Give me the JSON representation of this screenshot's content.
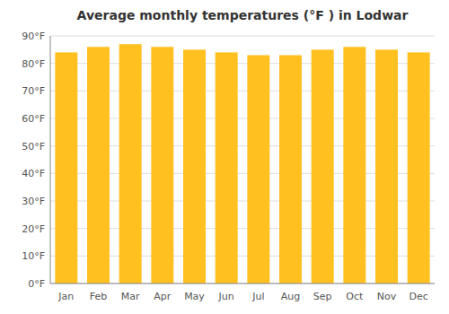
{
  "chart_data": {
    "type": "bar",
    "title": "Average monthly temperatures (°F ) in Lodwar",
    "categories": [
      "Jan",
      "Feb",
      "Mar",
      "Apr",
      "May",
      "Jun",
      "Jul",
      "Aug",
      "Sep",
      "Oct",
      "Nov",
      "Dec"
    ],
    "values": [
      84,
      86,
      87,
      86,
      85,
      84,
      83,
      83,
      85,
      86,
      85,
      84
    ],
    "color": "#FFC020",
    "ylim": [
      0,
      90
    ],
    "yticks": [
      {
        "value": 0,
        "label": "0°F"
      },
      {
        "value": 10,
        "label": "10°F"
      },
      {
        "value": 20,
        "label": "20°F"
      },
      {
        "value": 30,
        "label": "30°F"
      },
      {
        "value": 40,
        "label": "40°F"
      },
      {
        "value": 50,
        "label": "50°F"
      },
      {
        "value": 60,
        "label": "60°F"
      },
      {
        "value": 70,
        "label": "70°F"
      },
      {
        "value": 80,
        "label": "80°F"
      },
      {
        "value": 90,
        "label": "90°F"
      }
    ],
    "grid": true
  }
}
